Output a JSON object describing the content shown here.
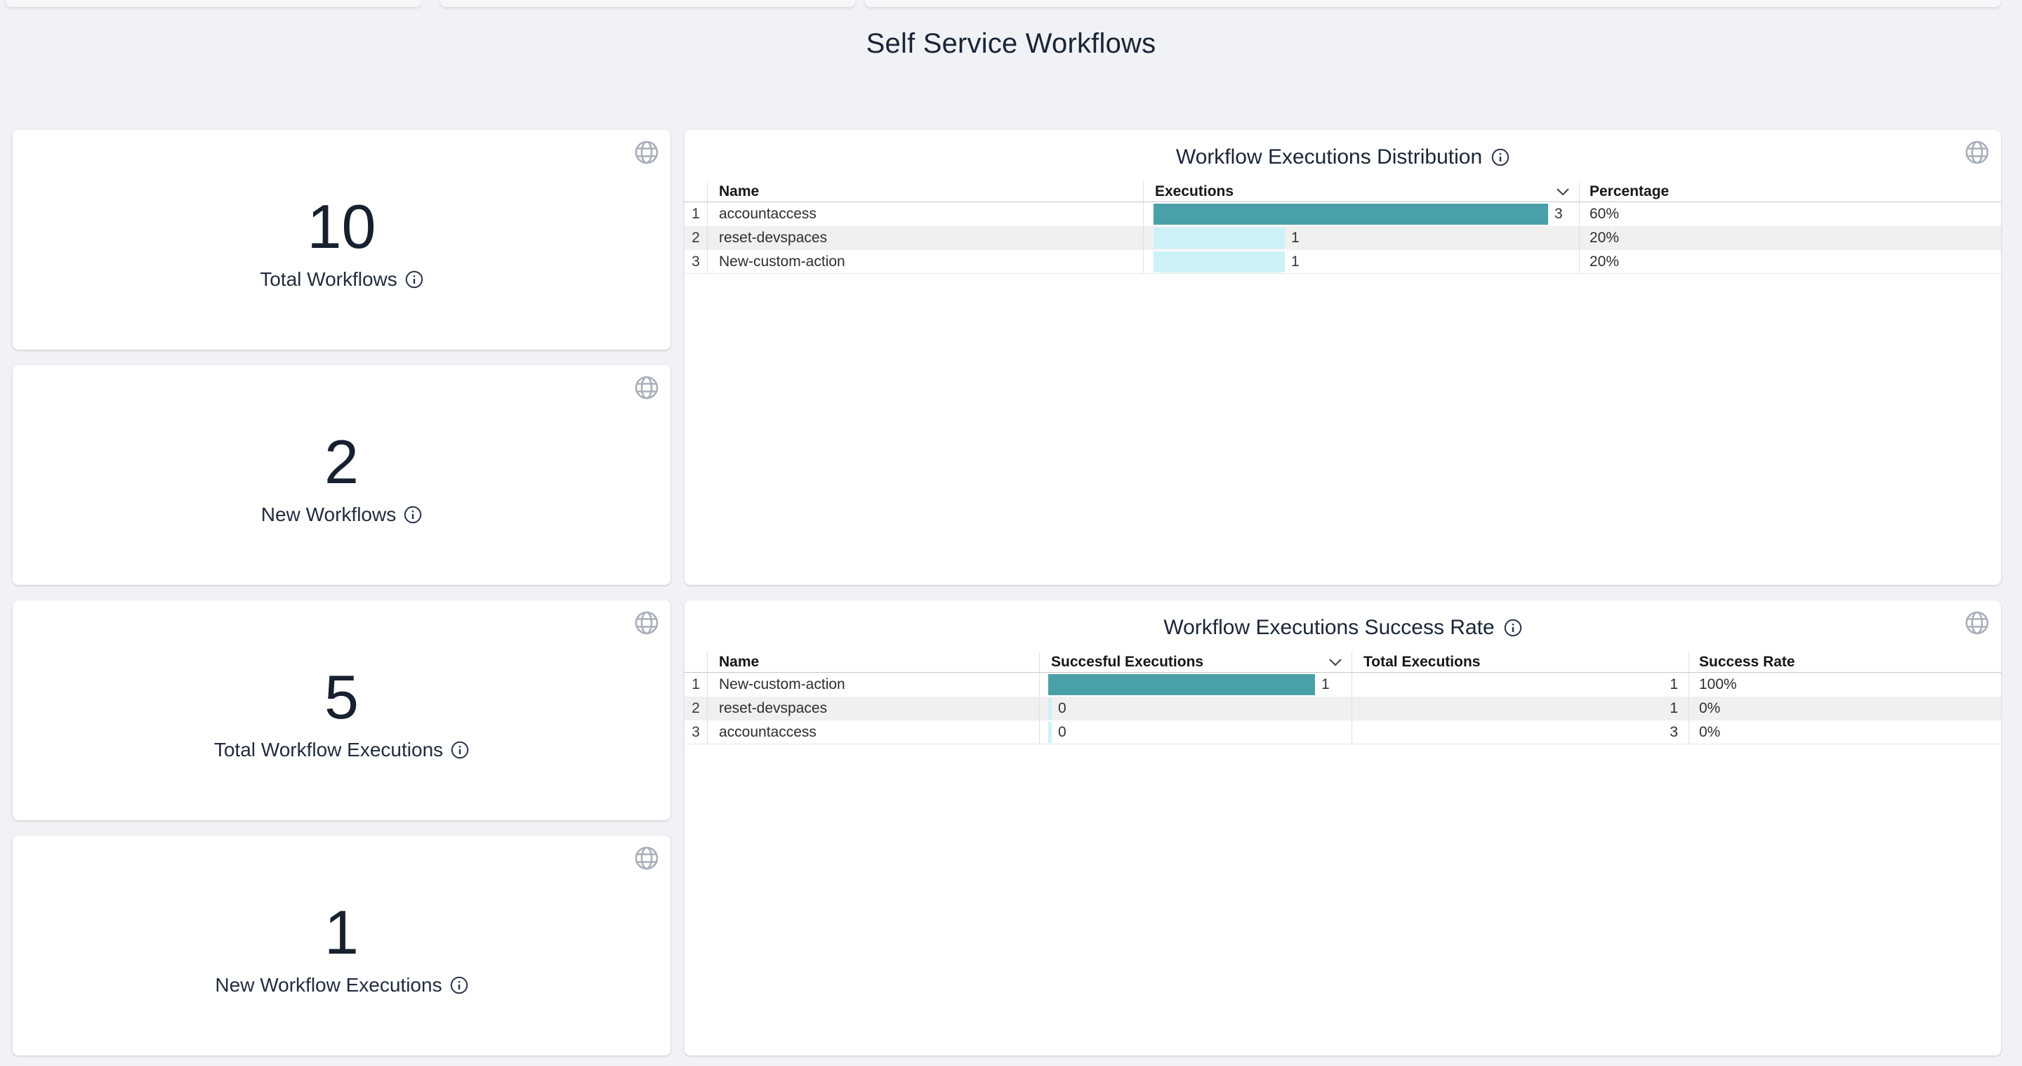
{
  "page": {
    "title": "Self Service Workflows"
  },
  "colors": {
    "bar_primary": "#4aa0a8",
    "bar_light": "#ccf2f8",
    "page_background": "#f0f2f5",
    "title_text": "#1a2537"
  },
  "stat_cards": [
    {
      "value": "10",
      "label": "Total Workflows"
    },
    {
      "value": "2",
      "label": "New Workflows"
    },
    {
      "value": "5",
      "label": "Total Workflow Executions"
    },
    {
      "value": "1",
      "label": "New Workflow Executions"
    }
  ],
  "distribution_table": {
    "title": "Workflow Executions Distribution",
    "columns": {
      "name": "Name",
      "executions": "Executions",
      "percentage": "Percentage"
    },
    "sorted_column": "Executions",
    "max": 3,
    "rows": [
      {
        "index": "1",
        "name": "accountaccess",
        "executions": 3,
        "percentage": "60%"
      },
      {
        "index": "2",
        "name": "reset-devspaces",
        "executions": 1,
        "percentage": "20%"
      },
      {
        "index": "3",
        "name": "New-custom-action",
        "executions": 1,
        "percentage": "20%"
      }
    ]
  },
  "success_table": {
    "title": "Workflow Executions Success Rate",
    "columns": {
      "name": "Name",
      "successful": "Succesful Executions",
      "total": "Total Executions",
      "rate": "Success Rate"
    },
    "sorted_column": "Succesful Executions",
    "max": 1,
    "rows": [
      {
        "index": "1",
        "name": "New-custom-action",
        "successful": 1,
        "total": 1,
        "rate": "100%"
      },
      {
        "index": "2",
        "name": "reset-devspaces",
        "successful": 0,
        "total": 1,
        "rate": "0%"
      },
      {
        "index": "3",
        "name": "accountaccess",
        "successful": 0,
        "total": 3,
        "rate": "0%"
      }
    ]
  }
}
